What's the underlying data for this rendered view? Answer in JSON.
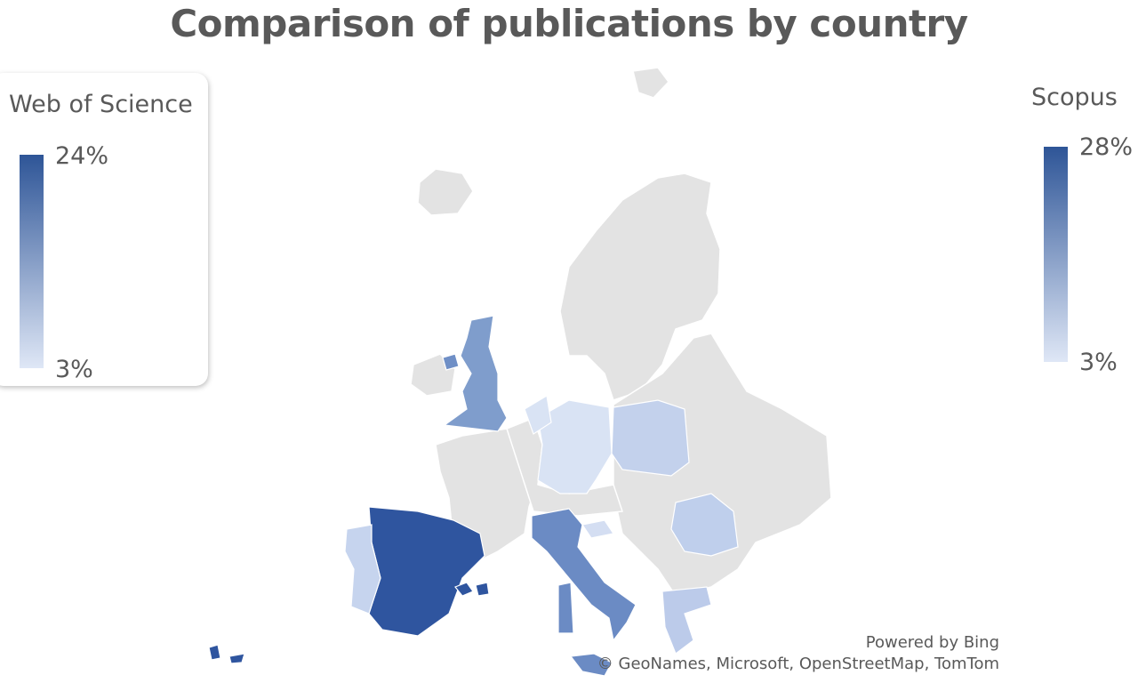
{
  "title": "Comparison of publications by country",
  "legends": [
    {
      "title": "Web of Science",
      "max_label": "24%",
      "min_label": "3%",
      "max_color": "#2e5597",
      "min_color": "#dfe7f6"
    },
    {
      "title": "Scopus",
      "max_label": "28%",
      "min_label": "3%",
      "max_color": "#2e5597",
      "min_color": "#dfe7f6"
    }
  ],
  "attribution": {
    "powered": "Powered by Bing",
    "credits": "© GeoNames, Microsoft, OpenStreetMap, TomTom"
  },
  "colors": {
    "no_data": "#e3e3e3",
    "border": "#ffffff"
  },
  "regions": [
    {
      "name": "Spain",
      "color": "#2f559f"
    },
    {
      "name": "Italy",
      "color": "#6b8bc4"
    },
    {
      "name": "United Kingdom",
      "color": "#7f9dcc"
    },
    {
      "name": "Portugal",
      "color": "#c6d4ee"
    },
    {
      "name": "Germany",
      "color": "#d9e3f4"
    },
    {
      "name": "Poland",
      "color": "#c3d1ec"
    },
    {
      "name": "Romania",
      "color": "#bfcfec"
    },
    {
      "name": "Greece",
      "color": "#bccbea"
    },
    {
      "name": "Slovenia",
      "color": "#d4def2"
    }
  ]
}
